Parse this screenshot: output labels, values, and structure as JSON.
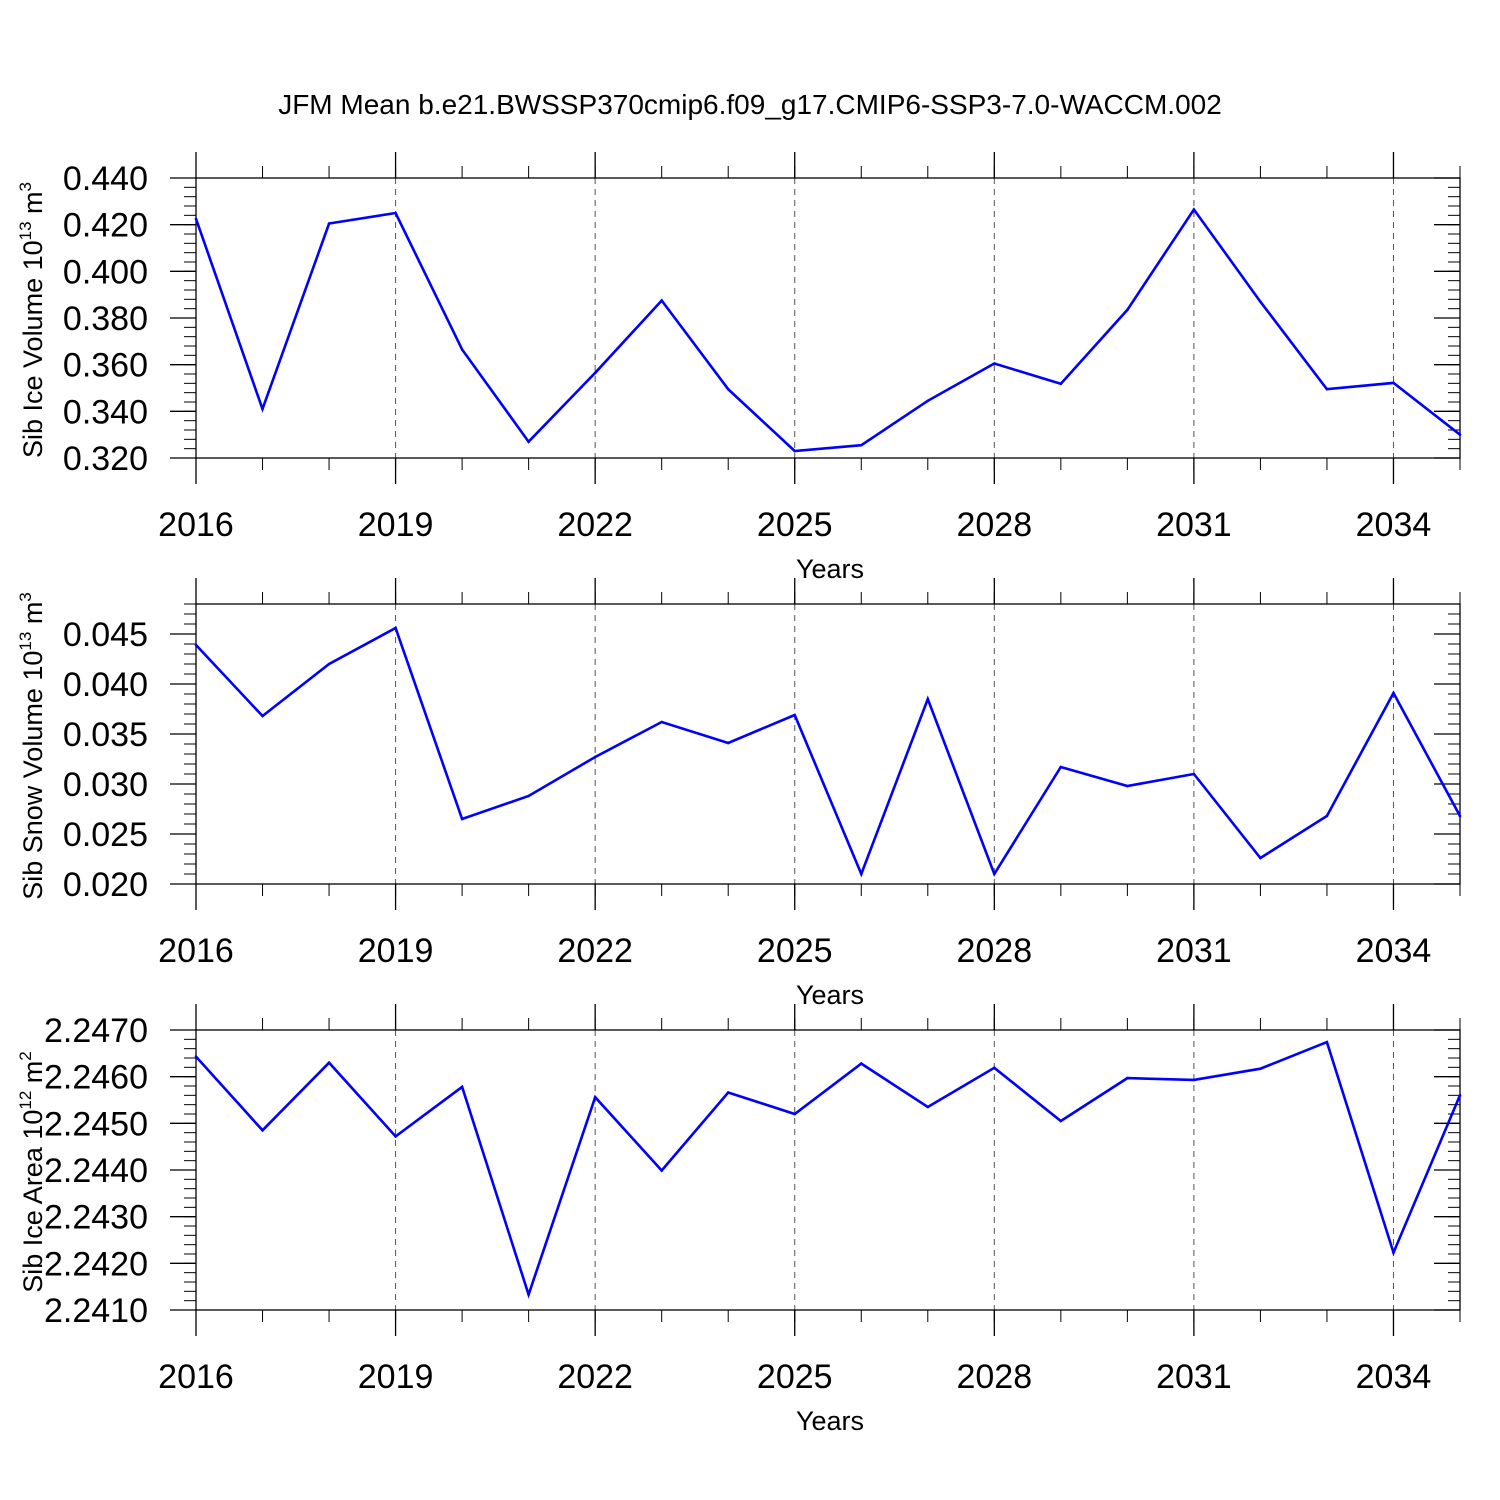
{
  "figure": {
    "title": "JFM Mean b.e21.BWSSP370cmip6.f09_g17.CMIP6-SSP3-7.0-WACCM.002"
  },
  "chart_data": [
    {
      "type": "line",
      "ylabel": {
        "text": "Sib Ice Volume 10",
        "exp": "13",
        "unit": " m",
        "unit_exp": "3"
      },
      "xlabel": "Years",
      "xlim": [
        2016,
        2035
      ],
      "ylim": [
        0.32,
        0.44
      ],
      "yticks": [
        0.32,
        0.34,
        0.36,
        0.38,
        0.4,
        0.42,
        0.44
      ],
      "yticklabels": [
        "0.320",
        "0.340",
        "0.360",
        "0.380",
        "0.400",
        "0.420",
        "0.440"
      ],
      "yminor_step": 0.004,
      "xticks": [
        2016,
        2019,
        2022,
        2025,
        2028,
        2031,
        2034
      ],
      "xticklabels": [
        "2016",
        "2019",
        "2022",
        "2025",
        "2028",
        "2031",
        "2034"
      ],
      "grid": "vertical-dashed",
      "line_color": "#0000ff",
      "series": [
        {
          "x": [
            2016,
            2017,
            2018,
            2019,
            2020,
            2021,
            2022,
            2023,
            2024,
            2025,
            2026,
            2027,
            2028,
            2029,
            2030,
            2031,
            2032,
            2033,
            2034,
            2035
          ],
          "values": [
            0.4225,
            0.341,
            0.4205,
            0.425,
            0.3665,
            0.327,
            0.3565,
            0.3875,
            0.3495,
            0.323,
            0.3255,
            0.3445,
            0.3605,
            0.3518,
            0.3835,
            0.4265,
            0.387,
            0.3495,
            0.3522,
            0.33
          ]
        }
      ]
    },
    {
      "type": "line",
      "ylabel": {
        "text": "Sib Snow Volume 10",
        "exp": "13",
        "unit": " m",
        "unit_exp": "3"
      },
      "xlabel": "Years",
      "xlim": [
        2016,
        2035
      ],
      "ylim": [
        0.02,
        0.048
      ],
      "yticks": [
        0.02,
        0.025,
        0.03,
        0.035,
        0.04,
        0.045
      ],
      "yticklabels": [
        "0.020",
        "0.025",
        "0.030",
        "0.035",
        "0.040",
        "0.045"
      ],
      "yminor_step": 0.001,
      "xticks": [
        2016,
        2019,
        2022,
        2025,
        2028,
        2031,
        2034
      ],
      "xticklabels": [
        "2016",
        "2019",
        "2022",
        "2025",
        "2028",
        "2031",
        "2034"
      ],
      "grid": "vertical-dashed",
      "line_color": "#0000ff",
      "series": [
        {
          "x": [
            2016,
            2017,
            2018,
            2019,
            2020,
            2021,
            2022,
            2023,
            2024,
            2025,
            2026,
            2027,
            2028,
            2029,
            2030,
            2031,
            2032,
            2033,
            2034,
            2035
          ],
          "values": [
            0.0439,
            0.0368,
            0.042,
            0.0456,
            0.0265,
            0.0288,
            0.0327,
            0.0362,
            0.0341,
            0.0369,
            0.021,
            0.0385,
            0.021,
            0.0317,
            0.0298,
            0.031,
            0.0226,
            0.0268,
            0.0391,
            0.0268
          ]
        }
      ]
    },
    {
      "type": "line",
      "ylabel": {
        "text": "Sib Ice Area 10",
        "exp": "12",
        "unit": " m",
        "unit_exp": "2"
      },
      "xlabel": "Years",
      "xlim": [
        2016,
        2035
      ],
      "ylim": [
        2.241,
        2.247
      ],
      "yticks": [
        2.241,
        2.242,
        2.243,
        2.244,
        2.245,
        2.246,
        2.247
      ],
      "yticklabels": [
        "2.2410",
        "2.2420",
        "2.2430",
        "2.2440",
        "2.2450",
        "2.2460",
        "2.2470"
      ],
      "yminor_step": 0.0002,
      "xticks": [
        2016,
        2019,
        2022,
        2025,
        2028,
        2031,
        2034
      ],
      "xticklabels": [
        "2016",
        "2019",
        "2022",
        "2025",
        "2028",
        "2031",
        "2034"
      ],
      "grid": "vertical-dashed",
      "line_color": "#0000ff",
      "series": [
        {
          "x": [
            2016,
            2017,
            2018,
            2019,
            2020,
            2021,
            2022,
            2023,
            2024,
            2025,
            2026,
            2027,
            2028,
            2029,
            2030,
            2031,
            2032,
            2033,
            2034,
            2035
          ],
          "values": [
            2.24643,
            2.24485,
            2.2463,
            2.24472,
            2.24578,
            2.24133,
            2.24556,
            2.24399,
            2.24566,
            2.2452,
            2.24628,
            2.24535,
            2.24619,
            2.24505,
            2.24597,
            2.24593,
            2.24617,
            2.24674,
            2.24223,
            2.2456
          ]
        }
      ]
    }
  ]
}
